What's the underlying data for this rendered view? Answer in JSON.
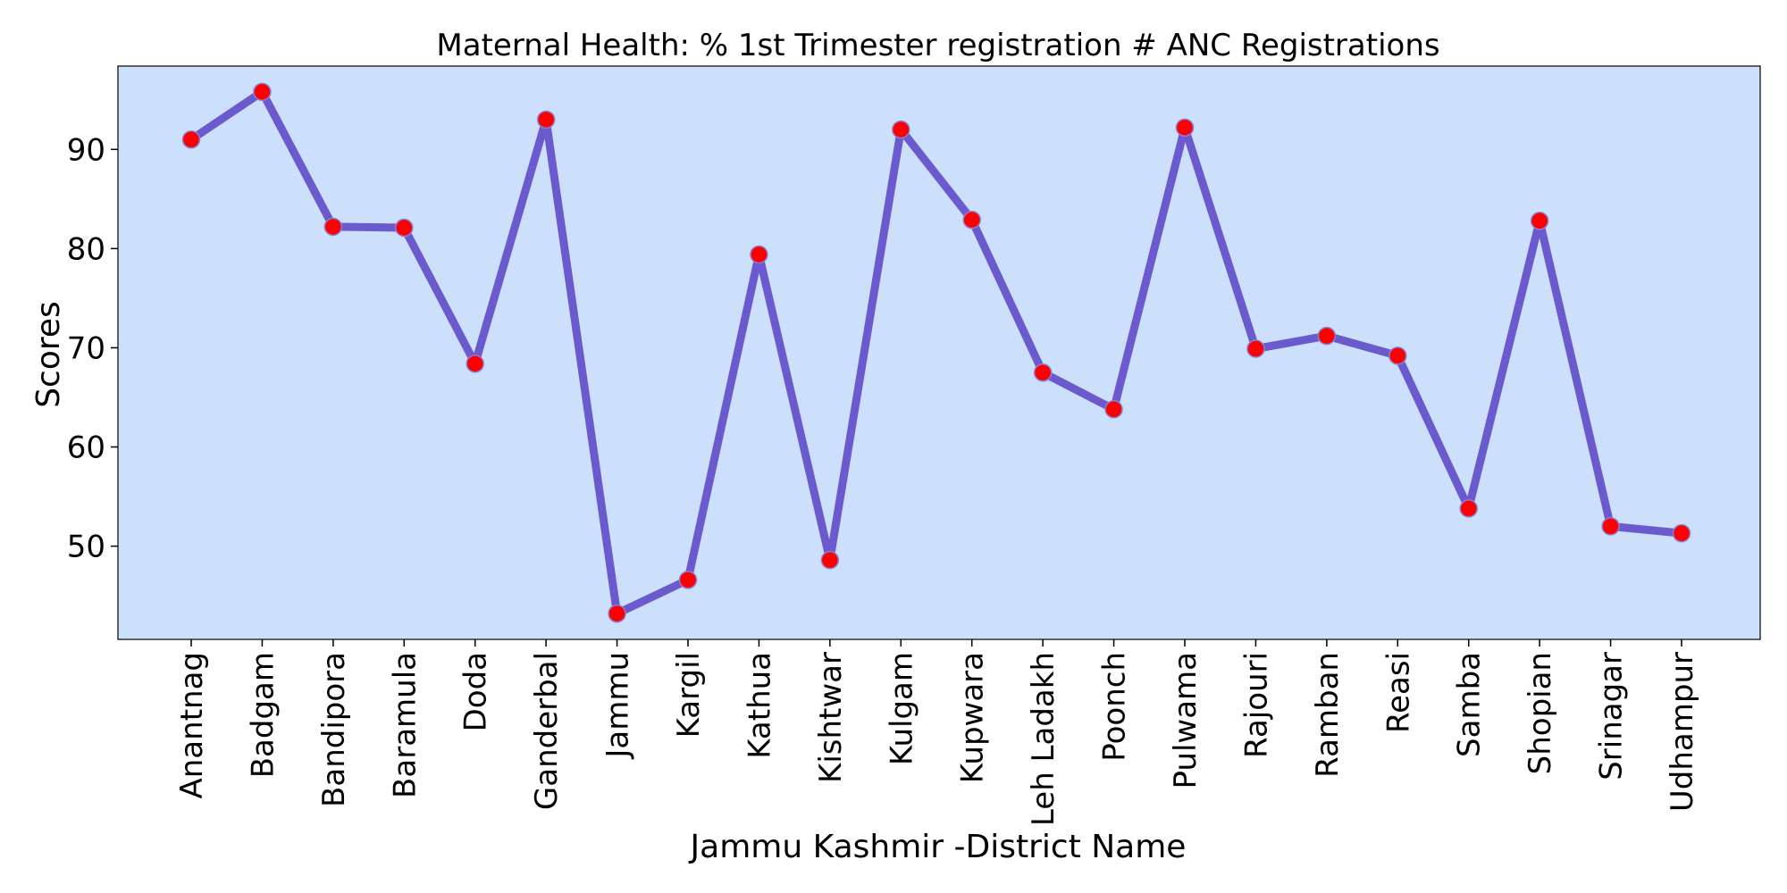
{
  "chart_data": {
    "type": "line",
    "title": "Maternal Health: % 1st Trimester registration # ANC Registrations",
    "xlabel": "Jammu Kashmir -District Name",
    "ylabel": "Scores",
    "categories": [
      "Anantnag",
      "Badgam",
      "Bandipora",
      "Baramula",
      "Doda",
      "Ganderbal",
      "Jammu",
      "Kargil",
      "Kathua",
      "Kishtwar",
      "Kulgam",
      "Kupwara",
      "Leh Ladakh",
      "Poonch",
      "Pulwama",
      "Rajouri",
      "Ramban",
      "Reasi",
      "Samba",
      "Shopian",
      "Srinagar",
      "Udhampur"
    ],
    "series": [
      {
        "values": [
          91.0,
          95.8,
          82.2,
          82.1,
          68.4,
          93.0,
          43.2,
          46.6,
          79.4,
          48.6,
          92.0,
          82.9,
          67.5,
          63.8,
          92.2,
          69.9,
          71.2,
          69.2,
          53.8,
          82.8,
          52.0,
          51.3
        ]
      }
    ],
    "yticks": [
      50,
      60,
      70,
      80,
      90
    ],
    "ylim": [
      40.6,
      98.4
    ],
    "grid": false,
    "colors": {
      "plot_background": "#cce0fc",
      "line": "#6a5acd",
      "marker_fill": "#ff0000",
      "marker_edge": "#8a7fd6"
    }
  }
}
